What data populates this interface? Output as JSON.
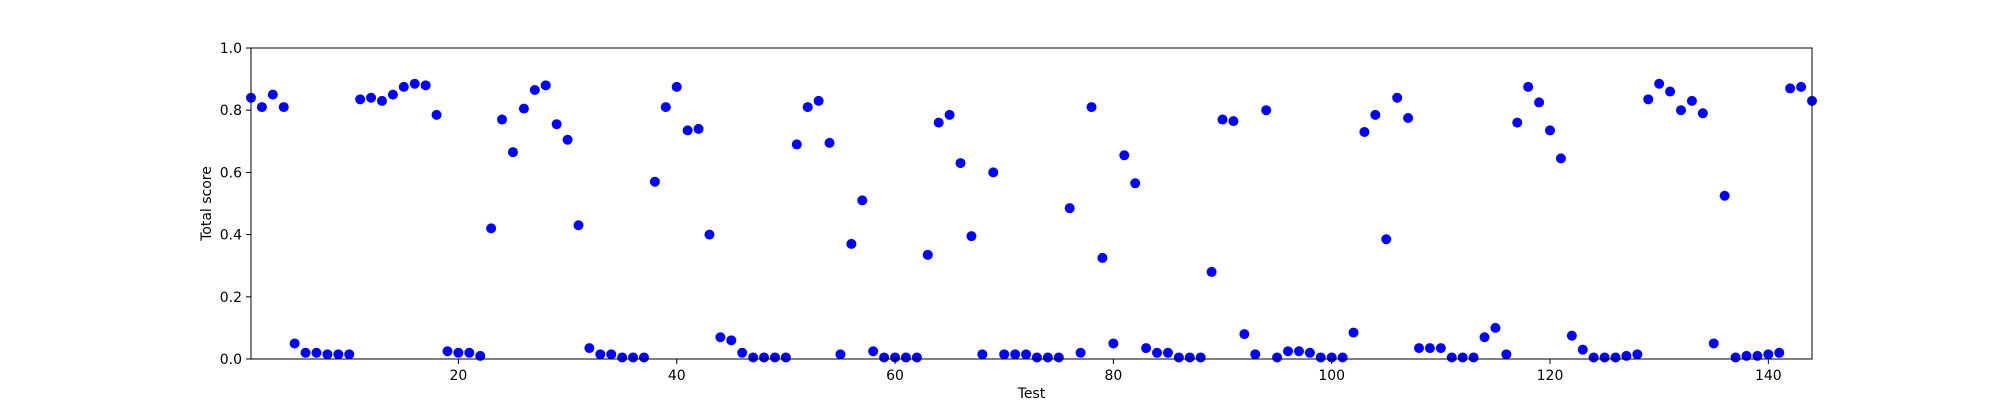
{
  "chart_data": {
    "type": "scatter",
    "xlabel": "Test",
    "ylabel": "Total score",
    "xlim": [
      1,
      144
    ],
    "ylim": [
      0.0,
      1.0
    ],
    "x_ticks": [
      20,
      40,
      60,
      80,
      100,
      120,
      140
    ],
    "x_tick_labels": [
      "20",
      "40",
      "60",
      "80",
      "100",
      "120",
      "140"
    ],
    "y_ticks": [
      0.0,
      0.2,
      0.4,
      0.6,
      0.8,
      1.0
    ],
    "y_tick_labels": [
      "0.0",
      "0.2",
      "0.4",
      "0.6",
      "0.8",
      "1.0"
    ],
    "grid": false,
    "marker_color": "#0000ff",
    "x": [
      1,
      2,
      3,
      4,
      5,
      6,
      7,
      8,
      9,
      10,
      11,
      12,
      13,
      14,
      15,
      16,
      17,
      18,
      19,
      20,
      21,
      22,
      23,
      24,
      25,
      26,
      27,
      28,
      29,
      30,
      31,
      32,
      33,
      34,
      35,
      36,
      37,
      38,
      39,
      40,
      41,
      42,
      43,
      44,
      45,
      46,
      47,
      48,
      49,
      50,
      51,
      52,
      53,
      54,
      55,
      56,
      57,
      58,
      59,
      60,
      61,
      62,
      63,
      64,
      65,
      66,
      67,
      68,
      69,
      70,
      71,
      72,
      73,
      74,
      75,
      76,
      77,
      78,
      79,
      80,
      81,
      82,
      83,
      84,
      85,
      86,
      87,
      88,
      89,
      90,
      91,
      92,
      93,
      94,
      95,
      96,
      97,
      98,
      99,
      100,
      101,
      102,
      103,
      104,
      105,
      106,
      107,
      108,
      109,
      110,
      111,
      112,
      113,
      114,
      115,
      116,
      117,
      118,
      119,
      120,
      121,
      122,
      123,
      124,
      125,
      126,
      127,
      128,
      129,
      130,
      131,
      132,
      133,
      134,
      135,
      136,
      137,
      138,
      139,
      140,
      141,
      142,
      143,
      144
    ],
    "y": [
      0.84,
      0.81,
      0.85,
      0.81,
      0.05,
      0.02,
      0.02,
      0.015,
      0.015,
      0.015,
      0.835,
      0.84,
      0.83,
      0.85,
      0.875,
      0.885,
      0.88,
      0.785,
      0.025,
      0.02,
      0.02,
      0.01,
      0.42,
      0.77,
      0.665,
      0.805,
      0.865,
      0.88,
      0.755,
      0.705,
      0.43,
      0.035,
      0.015,
      0.015,
      0.005,
      0.005,
      0.005,
      0.57,
      0.81,
      0.875,
      0.735,
      0.74,
      0.4,
      0.07,
      0.06,
      0.02,
      0.005,
      0.005,
      0.005,
      0.005,
      0.69,
      0.81,
      0.83,
      0.695,
      0.015,
      0.37,
      0.51,
      0.025,
      0.005,
      0.005,
      0.005,
      0.005,
      0.335,
      0.76,
      0.785,
      0.63,
      0.395,
      0.015,
      0.6,
      0.015,
      0.015,
      0.015,
      0.005,
      0.005,
      0.005,
      0.485,
      0.02,
      0.81,
      0.325,
      0.05,
      0.655,
      0.565,
      0.035,
      0.02,
      0.02,
      0.005,
      0.005,
      0.005,
      0.28,
      0.77,
      0.765,
      0.08,
      0.015,
      0.8,
      0.005,
      0.025,
      0.025,
      0.02,
      0.005,
      0.005,
      0.005,
      0.085,
      0.73,
      0.785,
      0.385,
      0.84,
      0.775,
      0.035,
      0.035,
      0.035,
      0.005,
      0.005,
      0.005,
      0.07,
      0.1,
      0.015,
      0.76,
      0.875,
      0.825,
      0.735,
      0.645,
      0.075,
      0.03,
      0.005,
      0.005,
      0.005,
      0.01,
      0.015,
      0.835,
      0.885,
      0.86,
      0.8,
      0.83,
      0.79,
      0.05,
      0.525,
      0.005,
      0.01,
      0.01,
      0.015,
      0.02,
      0.87,
      0.875,
      0.83
    ]
  }
}
